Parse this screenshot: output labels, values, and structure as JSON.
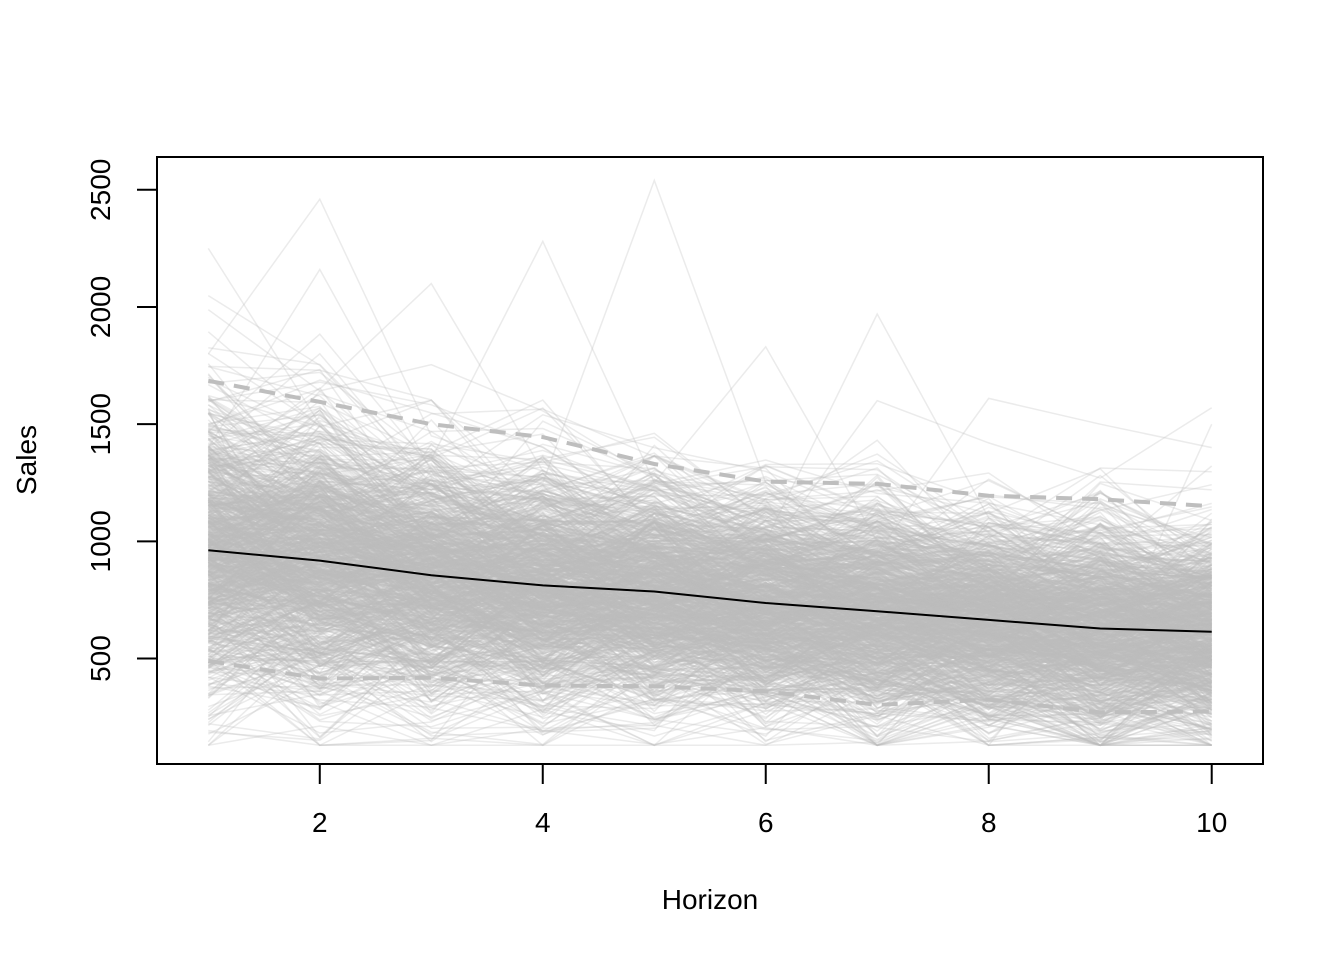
{
  "chart_data": {
    "type": "line",
    "title": "",
    "xlabel": "Horizon",
    "ylabel": "Sales",
    "x": [
      1,
      2,
      3,
      4,
      5,
      6,
      7,
      8,
      9,
      10
    ],
    "xlim": [
      0.54,
      10.46
    ],
    "ylim": [
      50,
      2640
    ],
    "x_ticks": [
      2,
      4,
      6,
      8,
      10
    ],
    "y_ticks": [
      500,
      1000,
      1500,
      2000,
      2500
    ],
    "grid": false,
    "legend": "none",
    "series": [
      {
        "role": "mean",
        "values": [
          962,
          918,
          855,
          812,
          786,
          737,
          702,
          665,
          628,
          614
        ],
        "color": "#000000",
        "style": "solid"
      },
      {
        "role": "upper",
        "values": [
          1685,
          1595,
          1500,
          1445,
          1330,
          1255,
          1245,
          1195,
          1180,
          1150
        ],
        "color": "#BEBEBE",
        "style": "dashed"
      },
      {
        "role": "lower",
        "values": [
          490,
          415,
          418,
          385,
          382,
          360,
          302,
          325,
          270,
          275
        ],
        "color": "#BEBEBE",
        "style": "dashed"
      }
    ],
    "simulated_paths": {
      "color": "#BEBEBE",
      "opacity": 0.3,
      "count": 1000,
      "spike_paths": [
        [
          2250,
          1500,
          1350,
          1200,
          1050,
          950,
          900,
          850,
          800,
          780
        ],
        [
          1800,
          2460,
          1450,
          1300,
          1150,
          1050,
          980,
          900,
          850,
          820
        ],
        [
          1400,
          2160,
          1300,
          1200,
          1100,
          1000,
          900,
          850,
          800,
          760
        ],
        [
          1500,
          1650,
          2100,
          1300,
          1150,
          1050,
          950,
          900,
          850,
          800
        ],
        [
          1300,
          1450,
          1350,
          2280,
          1250,
          1100,
          1000,
          950,
          880,
          840
        ],
        [
          1200,
          1350,
          1300,
          1250,
          2540,
          1250,
          1050,
          980,
          900,
          870
        ],
        [
          1100,
          1300,
          1200,
          1150,
          1250,
          1830,
          1000,
          950,
          880,
          840
        ],
        [
          1000,
          1150,
          1100,
          1050,
          1000,
          1000,
          1970,
          1100,
          950,
          900
        ],
        [
          950,
          1100,
          1050,
          1000,
          950,
          950,
          1600,
          1420,
          1270,
          1570
        ],
        [
          900,
          1050,
          1000,
          950,
          900,
          900,
          950,
          1610,
          1500,
          1400
        ],
        [
          900,
          700,
          650,
          620,
          600,
          550,
          500,
          480,
          450,
          1500
        ]
      ]
    }
  }
}
